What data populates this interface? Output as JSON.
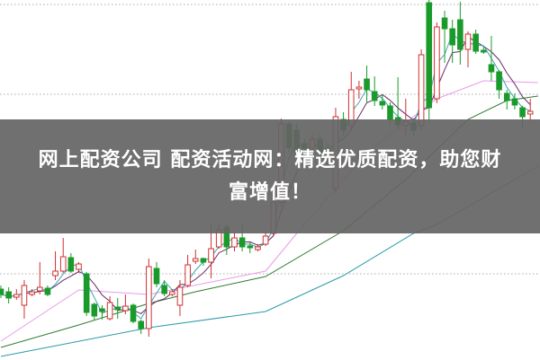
{
  "banner": {
    "line1": "网上配资公司 配资活动网：精选优质配资，助您财",
    "line2": "富增值！"
  },
  "chart_data": {
    "type": "candlestick",
    "ylim": [
      0,
      400
    ],
    "grid": "dotted horizontal",
    "grid_levels": [
      95,
      295,
      395
    ],
    "colors": {
      "up": "#d03030",
      "down": "#1a9a2a",
      "ma5": "#3aa6b0",
      "ma10": "#6a2a6a",
      "ma_pink": "#e89be8",
      "ma_green": "#2f7a2f",
      "ma_cyan": "#2a9aaa",
      "grid": "#aaaaaa",
      "banner": "#646464"
    },
    "candles_ohlc": [
      [
        78,
        72,
        82,
        68
      ],
      [
        75,
        68,
        80,
        62
      ],
      [
        69,
        72,
        78,
        66
      ],
      [
        60,
        82,
        88,
        45
      ],
      [
        72,
        75,
        78,
        70
      ],
      [
        76,
        80,
        108,
        72
      ],
      [
        79,
        72,
        82,
        70
      ],
      [
        93,
        98,
        120,
        88
      ],
      [
        98,
        114,
        135,
        96
      ],
      [
        113,
        98,
        118,
        96
      ],
      [
        100,
        106,
        108,
        96
      ],
      [
        95,
        52,
        97,
        48
      ],
      [
        61,
        48,
        63,
        43
      ],
      [
        56,
        53,
        60,
        44
      ],
      [
        45,
        63,
        70,
        43
      ],
      [
        58,
        55,
        68,
        45
      ],
      [
        54,
        59,
        72,
        50
      ],
      [
        60,
        42,
        62,
        40
      ],
      [
        42,
        34,
        44,
        28
      ],
      [
        34,
        103,
        112,
        25
      ],
      [
        101,
        84,
        108,
        80
      ],
      [
        82,
        73,
        88,
        70
      ],
      [
        72,
        75,
        78,
        70
      ],
      [
        60,
        80,
        88,
        48
      ],
      [
        82,
        105,
        116,
        80
      ],
      [
        109,
        112,
        122,
        106
      ],
      [
        112,
        108,
        113,
        104
      ],
      [
        108,
        123,
        150,
        90
      ],
      [
        125,
        144,
        150,
        123
      ],
      [
        147,
        125,
        150,
        116
      ],
      [
        125,
        135,
        141,
        120
      ],
      [
        135,
        125,
        150,
        120
      ],
      [
        126,
        124,
        130,
        118
      ],
      [
        122,
        125,
        128,
        120
      ],
      [
        128,
        137,
        142,
        126
      ],
      [
        140,
        175,
        185,
        138
      ],
      [
        175,
        262,
        268,
        170
      ],
      [
        262,
        235,
        265,
        230
      ],
      [
        255,
        230,
        262,
        225
      ],
      [
        240,
        235,
        245,
        228
      ],
      [
        235,
        245,
        250,
        230
      ],
      [
        245,
        230,
        250,
        222
      ],
      [
        235,
        225,
        240,
        215
      ],
      [
        190,
        270,
        280,
        185
      ],
      [
        267,
        255,
        275,
        250
      ],
      [
        260,
        300,
        320,
        255
      ],
      [
        301,
        303,
        310,
        290
      ],
      [
        312,
        300,
        327,
        285
      ],
      [
        298,
        288,
        315,
        282
      ],
      [
        287,
        283,
        295,
        278
      ],
      [
        282,
        267,
        286,
        262
      ],
      [
        269,
        261,
        314,
        255
      ],
      [
        260,
        265,
        290,
        250
      ],
      [
        263,
        255,
        268,
        248
      ],
      [
        260,
        339,
        345,
        255
      ],
      [
        397,
        280,
        400,
        265
      ],
      [
        290,
        370,
        375,
        285
      ],
      [
        380,
        368,
        388,
        330
      ],
      [
        368,
        350,
        378,
        330
      ],
      [
        378,
        345,
        398,
        328
      ],
      [
        345,
        362,
        365,
        325
      ],
      [
        362,
        343,
        367,
        340
      ],
      [
        344,
        342,
        348,
        340
      ],
      [
        328,
        320,
        360,
        310
      ],
      [
        320,
        300,
        322,
        290
      ],
      [
        296,
        288,
        300,
        278
      ],
      [
        290,
        283,
        296,
        278
      ],
      [
        280,
        270,
        282,
        258
      ],
      [
        273,
        276,
        290,
        265
      ]
    ],
    "moving_averages": [
      {
        "points": [
          [
            0,
            20
          ],
          [
            10,
            77
          ],
          [
            19,
            72
          ],
          [
            34,
            98
          ],
          [
            38,
            140
          ],
          [
            47,
            230
          ],
          [
            56,
            290
          ],
          [
            62,
            310
          ],
          [
            69,
            308
          ]
        ],
        "color_key": "ma_pink"
      },
      {
        "points": [
          [
            0,
            13
          ],
          [
            10,
            38
          ],
          [
            19,
            62
          ],
          [
            25,
            75
          ],
          [
            34,
            92
          ],
          [
            44,
            143
          ],
          [
            52,
            200
          ],
          [
            60,
            267
          ],
          [
            65,
            288
          ],
          [
            69,
            293
          ]
        ],
        "color_key": "ma_green"
      },
      {
        "points": [
          [
            0,
            3
          ],
          [
            19,
            35
          ],
          [
            34,
            53
          ],
          [
            44,
            93
          ],
          [
            53,
            140
          ],
          [
            56,
            150
          ],
          [
            69,
            215
          ]
        ],
        "color_key": "ma_cyan"
      }
    ]
  }
}
